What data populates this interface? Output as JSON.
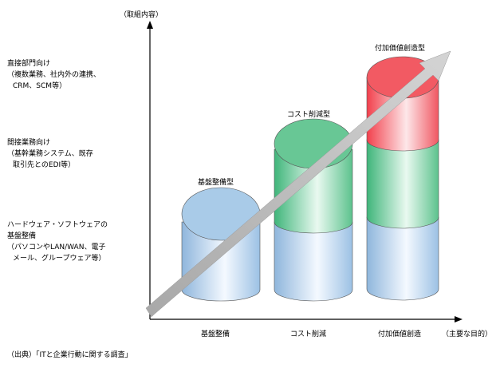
{
  "y_axis_title": "（取組内容）",
  "x_axis_title": "（主要な目的）",
  "source_note": "（出典）「ITと企業行動に関する調査」",
  "y_levels": [
    {
      "lines": [
        "直接部門向け",
        "（複数業務、社内外の連携、",
        "CRM、SCM等）"
      ]
    },
    {
      "lines": [
        "間接業務向け",
        "（基幹業務システム、既存",
        "取引先とのEDI等）"
      ]
    },
    {
      "lines": [
        "ハードウェア・ソフトウェアの",
        "基盤整備",
        "（パソコンやLAN/WAN、電子",
        "メール、グループウェア等）"
      ]
    }
  ],
  "x_categories": [
    "基盤整備",
    "コスト削減",
    "付加価値創造"
  ],
  "cylinder_labels": [
    "基盤整備型",
    "コスト削減型",
    "付加価値創造型"
  ],
  "colors": {
    "blue": "#a9cbe8",
    "green": "#68c795",
    "red": "#f25a63",
    "arrow": "#bdbdbd"
  }
}
